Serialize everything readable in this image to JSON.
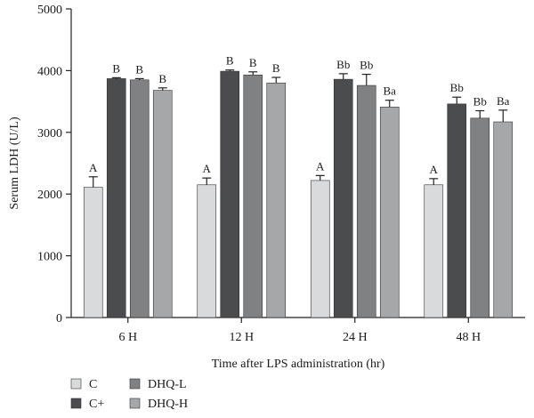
{
  "chart_data": {
    "type": "bar",
    "xlabel": "Time after LPS administration (hr)",
    "ylabel": "Serum LDH (U/L)",
    "ylim": [
      0,
      5000
    ],
    "yticks": [
      0,
      1000,
      2000,
      3000,
      4000,
      5000
    ],
    "categories": [
      "6 H",
      "12 H",
      "24 H",
      "48 H"
    ],
    "series": [
      {
        "name": "C",
        "color": "#d9dadb",
        "values": [
          2110,
          2150,
          2220,
          2150
        ],
        "errors": [
          170,
          110,
          80,
          100
        ],
        "labels": [
          "A",
          "A",
          "A",
          "A"
        ]
      },
      {
        "name": "C+",
        "color": "#4b4c4e",
        "values": [
          3870,
          3990,
          3860,
          3460
        ],
        "errors": [
          15,
          20,
          90,
          110
        ],
        "labels": [
          "B",
          "B",
          "Bb",
          "Bb"
        ]
      },
      {
        "name": "DHQ-L",
        "color": "#808183",
        "values": [
          3850,
          3930,
          3760,
          3230
        ],
        "errors": [
          20,
          50,
          180,
          120
        ],
        "labels": [
          "B",
          "B",
          "Bb",
          "Bb"
        ]
      },
      {
        "name": "DHQ-H",
        "color": "#a6a7a9",
        "values": [
          3680,
          3800,
          3410,
          3170
        ],
        "errors": [
          40,
          90,
          110,
          190
        ],
        "labels": [
          "B",
          "B",
          "Ba",
          "Ba"
        ]
      }
    ],
    "legend": {
      "position": "bottom-left",
      "items": [
        "C",
        "DHQ-L",
        "C+",
        "DHQ-H"
      ]
    }
  }
}
